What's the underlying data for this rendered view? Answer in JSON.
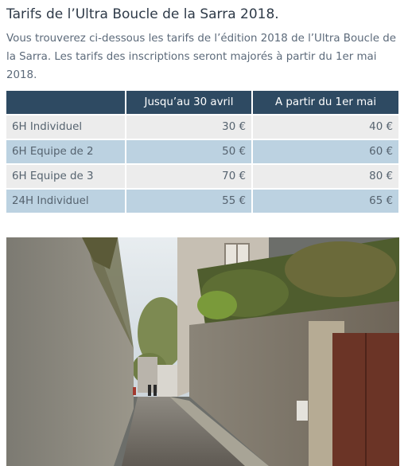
{
  "page": {
    "title": "Tarifs de l’Ultra Boucle de la Sarra 2018.",
    "intro": "Vous trouverez ci-dessous les tarifs de l’édition 2018 de l’Ultra Boucle de la Sarra. Les tarifs des inscriptions seront majorés à partir du 1er mai 2018."
  },
  "table": {
    "headers": [
      "",
      "Jusqu’au 30 avril",
      "A partir du 1er mai"
    ],
    "rows": [
      {
        "label": "6H Individuel",
        "early": "30 €",
        "late": "40 €"
      },
      {
        "label": "6H Equipe de 2",
        "early": "50 €",
        "late": "60 €"
      },
      {
        "label": "6H Equipe de 3",
        "early": "70 €",
        "late": "80 €"
      },
      {
        "label": "24H Individuel",
        "early": "55 €",
        "late": "65 €"
      }
    ]
  },
  "colors": {
    "header_bg": "#2e4a62",
    "row_light": "#ececec",
    "row_blue": "#bcd2e1",
    "title_text": "#2e3a48"
  }
}
